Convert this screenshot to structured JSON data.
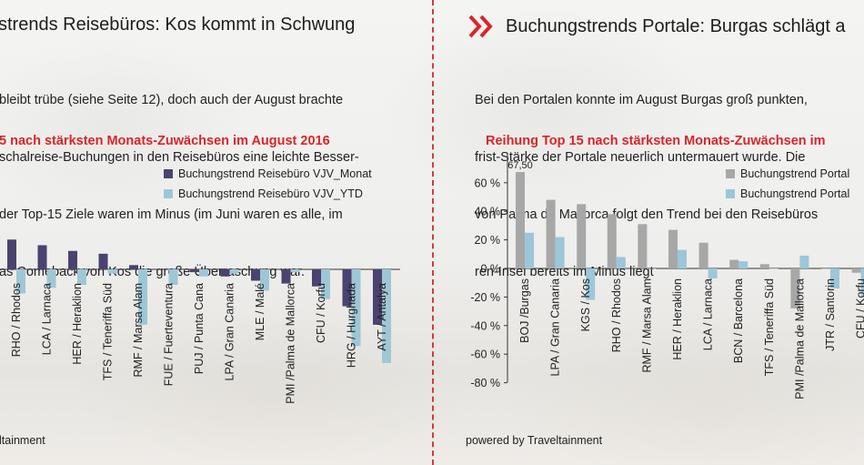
{
  "left": {
    "title": "strends Reisebüros: Kos kommt in Schwung",
    "paragraph": [
      "bleibt trübe (siehe Seite 12), doch auch der August brachte",
      "schalreise-Buchungen in den Reisebüros eine leichte Besser-",
      "der Top-15 Ziele waren im Minus (im Juni waren es alle, im",
      "as Comeback von Kos die große Überraschung war."
    ],
    "subtitle": "5 nach stärksten Monats-Zuwächsen im August 2016",
    "credit": "ltainment"
  },
  "right": {
    "title": "Buchungstrends Portale: Burgas schlägt a",
    "paragraph": [
      "Bei den Portalen konnte im August Burgas groß punkten,",
      "frist-Stärke der Portale neuerlich untermauert wurde. Die",
      "von Palma de Mallorca folgt den Trend bei den Reisebüros",
      "ren-Insel bereits im Minus liegt"
    ],
    "subtitle": "Reihung Top 15 nach stärksten Monats-Zuwächsen im",
    "credit": "powered by Traveltainment"
  },
  "colors": {
    "accent_red": "#d9252a",
    "left_monat": "#4a4370",
    "left_ytd": "#9ec7d6",
    "right_monat": "#a7a7a7",
    "right_ytd": "#9cc6d9"
  },
  "icon": "chevron-right-double-icon",
  "chart_data": [
    {
      "type": "bar",
      "categories": [
        "RHO / Rhodos",
        "LCA / Larnaca",
        "HER / Heraklion",
        "TFS / Teneriffa Süd",
        "RMF / Marsa Alam",
        "FUE / Fuerteventura",
        "PUJ / Punta Cana",
        "LPA / Gran Canaria",
        "MLE / Malé",
        "PMI /Palma de Mallorca",
        "CFU / Korfu",
        "HRG / Hurghada",
        "AYT / Antalya"
      ],
      "series": [
        {
          "name": "Buchungstrend Reisebüro VJV_Monat",
          "values": [
            21,
            17,
            13,
            11,
            3,
            0,
            -2,
            -5,
            -8,
            -10,
            -12,
            -26,
            -39
          ]
        },
        {
          "name": "Buchungstrend Reisebüro VJV_YTD",
          "values": [
            -17,
            -13,
            -11,
            -3,
            -39,
            -11,
            -5,
            -3,
            -15,
            -2,
            -21,
            -54,
            -66
          ]
        }
      ],
      "ylim": [
        -80,
        60
      ],
      "legend": "top-right"
    },
    {
      "type": "bar",
      "categories": [
        "BOJ /Burgas",
        "LPA / Gran Canaria",
        "KGS / Kos",
        "RHO / Rhodos",
        "RMF / Marsa Alam",
        "HER / Heraklion",
        "LCA / Larnaca",
        "BCN / Barcelona",
        "TFS / Teneriffa Süd",
        "PMI /Palma de Mallorca",
        "JTR / Santorin",
        "CFU / Korfu"
      ],
      "series": [
        {
          "name": "Buchungstrend Portal",
          "values": [
            67.5,
            48,
            45,
            38,
            31,
            27,
            18,
            6,
            3,
            -28,
            0,
            -3
          ]
        },
        {
          "name": "Buchungstrend Portal",
          "values": [
            25,
            22,
            -22,
            8,
            0,
            13,
            -7,
            5,
            0,
            9,
            -14,
            -20
          ]
        }
      ],
      "yticks": [
        "60 %",
        "40 %",
        "20 %",
        "0 %",
        "-20 %",
        "-40 %",
        "-60 %",
        "-80 %"
      ],
      "ylim": [
        -80,
        60
      ],
      "data_labels": [
        "67,50"
      ],
      "legend": "top-right"
    }
  ]
}
